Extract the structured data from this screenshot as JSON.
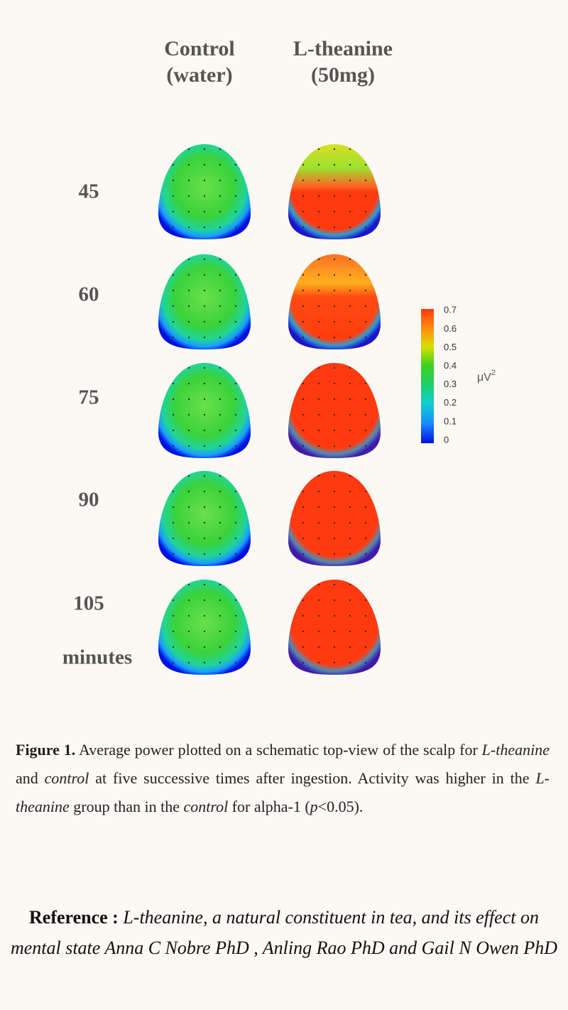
{
  "columns": [
    {
      "line1": "Control",
      "line2": "(water)"
    },
    {
      "line1": "L-theanine",
      "line2": "(50mg)"
    }
  ],
  "rows": [
    45,
    60,
    75,
    90,
    105
  ],
  "row_unit": "minutes",
  "colorbar": {
    "ticks": [
      0,
      0.1,
      0.2,
      0.3,
      0.4,
      0.5,
      0.6,
      0.7
    ],
    "unit": {
      "base": "μV",
      "sup": "2"
    }
  },
  "caption": {
    "label": "Figure 1.",
    "parts": [
      " Average power plotted on a schematic top-view of the scalp for ",
      "L-theanine",
      " and ",
      "control",
      " at five successive times after ingestion. Activity was higher in the ",
      "L-theanine",
      " group than in the ",
      "control",
      " for alpha-1 (",
      "p",
      "<0.05)."
    ]
  },
  "reference": {
    "label": "Reference :",
    "text": "L-theanine, a natural constituent in tea, and its effect on mental state Anna C Nobre PhD , Anling Rao PhD and Gail N Owen PhD"
  }
}
